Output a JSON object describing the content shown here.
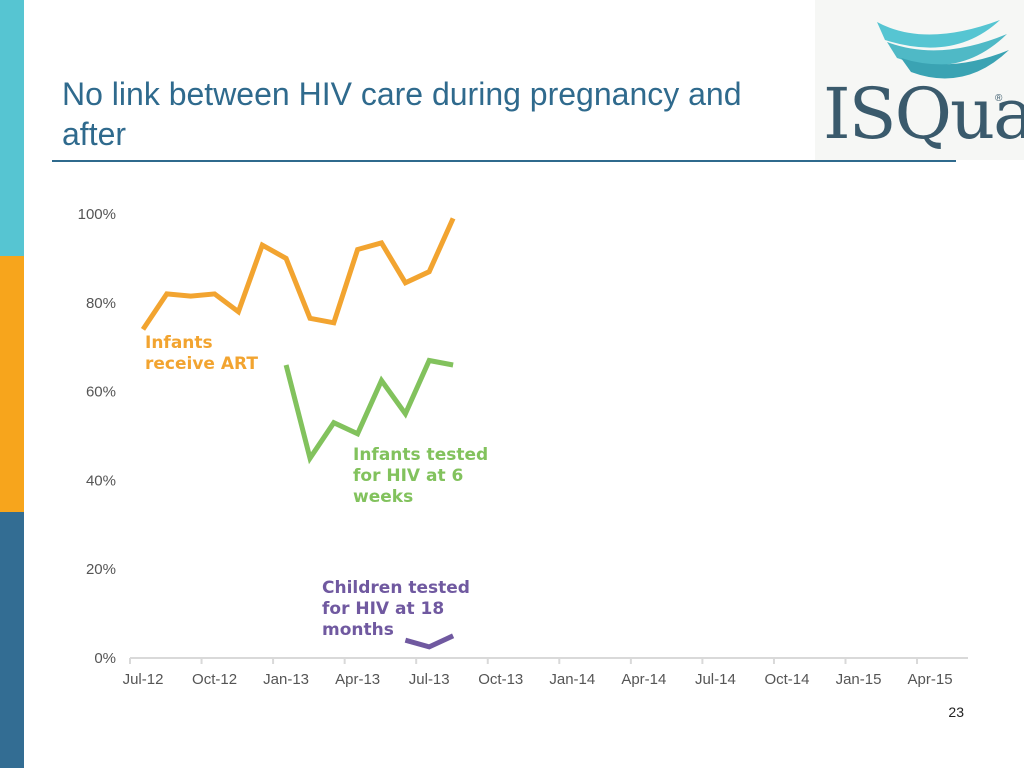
{
  "slide": {
    "title": "No link between HIV care during pregnancy and after",
    "page_number": "23",
    "accent_colors": [
      "#56c5d2",
      "#f7a51c",
      "#336d93"
    ],
    "title_color": "#2f6a8d"
  },
  "logo": {
    "text": "ISQua",
    "registered": "®",
    "icon": "isqua-wave-logo-icon"
  },
  "chart_data": {
    "type": "line",
    "title": "",
    "xlabel": "",
    "ylabel": "",
    "x_ticks": [
      "Jul-12",
      "Oct-12",
      "Jan-13",
      "Apr-13",
      "Jul-13",
      "Oct-13",
      "Jan-14",
      "Apr-14",
      "Jul-14",
      "Oct-14",
      "Jan-15",
      "Apr-15"
    ],
    "y_ticks": [
      "0%",
      "20%",
      "40%",
      "60%",
      "80%",
      "100%"
    ],
    "ylim": [
      0,
      100
    ],
    "x_months": [
      "Jul-12",
      "Aug-12",
      "Sep-12",
      "Oct-12",
      "Nov-12",
      "Dec-12",
      "Jan-13",
      "Feb-13",
      "Mar-13",
      "Apr-13",
      "May-13",
      "Jun-13",
      "Jul-13",
      "Aug-13"
    ],
    "grid": false,
    "series": [
      {
        "name": "Infants receive ART",
        "label_lines": [
          "Infants",
          "receive ART"
        ],
        "color": "#f2a430",
        "values": [
          74,
          82,
          81.5,
          82,
          78,
          93,
          90,
          76.5,
          75.5,
          92,
          93.5,
          84.5,
          87,
          99
        ]
      },
      {
        "name": "Infants tested for HIV at 6 weeks",
        "label_lines": [
          "Infants tested",
          "for HIV at 6",
          "weeks"
        ],
        "color": "#82c25d",
        "values": [
          null,
          null,
          null,
          null,
          null,
          null,
          66,
          45,
          53,
          50.5,
          62.5,
          55,
          67,
          66
        ]
      },
      {
        "name": "Children tested for HIV at 18 months",
        "label_lines": [
          "Children tested",
          "for HIV at 18",
          "months"
        ],
        "color": "#7059a0",
        "values": [
          null,
          null,
          null,
          null,
          null,
          null,
          null,
          null,
          null,
          null,
          null,
          4,
          2.5,
          5
        ]
      }
    ]
  }
}
